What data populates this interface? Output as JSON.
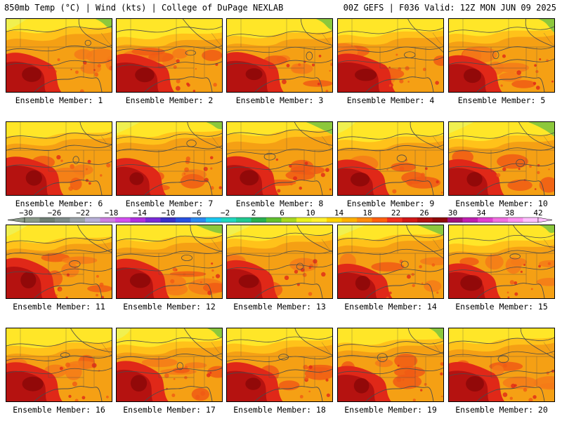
{
  "header": {
    "left": "850mb Temp (°C) | Wind (kts) | College of DuPage NEXLAB",
    "right": "00Z GEFS | F036 Valid: 12Z MON JUN 09 2025"
  },
  "colorbar": {
    "labels": [
      "−30",
      "−26",
      "−22",
      "−18",
      "−14",
      "−10",
      "−6",
      "−2",
      "2",
      "6",
      "10",
      "14",
      "18",
      "22",
      "26",
      "30",
      "34",
      "38",
      "42"
    ],
    "colors": [
      "#8a9a8a",
      "#6e7e74",
      "#7f8c8a",
      "#9aa2a8",
      "#b8b0d8",
      "#cc7fe0",
      "#d34ff0",
      "#b030e0",
      "#7a2ad8",
      "#3a30c8",
      "#2850e0",
      "#2a8af0",
      "#1ac8f0",
      "#20d8c0",
      "#20c890",
      "#28b050",
      "#60c030",
      "#a8d820",
      "#e8f020",
      "#fff030",
      "#ffd200",
      "#ffb000",
      "#ff8c10",
      "#ff6010",
      "#f03020",
      "#d01818",
      "#b01010",
      "#900808",
      "#a0107a",
      "#c020b0",
      "#e040d0",
      "#f070e0",
      "#ff90f0",
      "#ffc0ff"
    ]
  },
  "panels": [
    {
      "caption": "Ensemble Member: 1",
      "member": 1
    },
    {
      "caption": "Ensemble Member: 2",
      "member": 2
    },
    {
      "caption": "Ensemble Member: 3",
      "member": 3
    },
    {
      "caption": "Ensemble Member: 4",
      "member": 4
    },
    {
      "caption": "Ensemble Member: 5",
      "member": 5
    },
    {
      "caption": "Ensemble Member: 6",
      "member": 6
    },
    {
      "caption": "Ensemble Member: 7",
      "member": 7
    },
    {
      "caption": "Ensemble Member: 8",
      "member": 8
    },
    {
      "caption": "Ensemble Member: 9",
      "member": 9
    },
    {
      "caption": "Ensemble Member: 10",
      "member": 10
    },
    {
      "caption": "Ensemble Member: 11",
      "member": 11
    },
    {
      "caption": "Ensemble Member: 12",
      "member": 12
    },
    {
      "caption": "Ensemble Member: 13",
      "member": 13
    },
    {
      "caption": "Ensemble Member: 14",
      "member": 14
    },
    {
      "caption": "Ensemble Member: 15",
      "member": 15
    },
    {
      "caption": "Ensemble Member: 16",
      "member": 16
    },
    {
      "caption": "Ensemble Member: 17",
      "member": 17
    },
    {
      "caption": "Ensemble Member: 18",
      "member": 18
    },
    {
      "caption": "Ensemble Member: 19",
      "member": 19
    },
    {
      "caption": "Ensemble Member: 20",
      "member": 20
    }
  ],
  "palette": {
    "darkred": "#b01010",
    "red": "#e02818",
    "redorange": "#f05a14",
    "orange": "#f5a014",
    "amber": "#ffc21a",
    "yellow": "#ffe628",
    "lightyellow": "#f0f050",
    "green": "#8cc83c",
    "contour": "#4a4a4a"
  }
}
